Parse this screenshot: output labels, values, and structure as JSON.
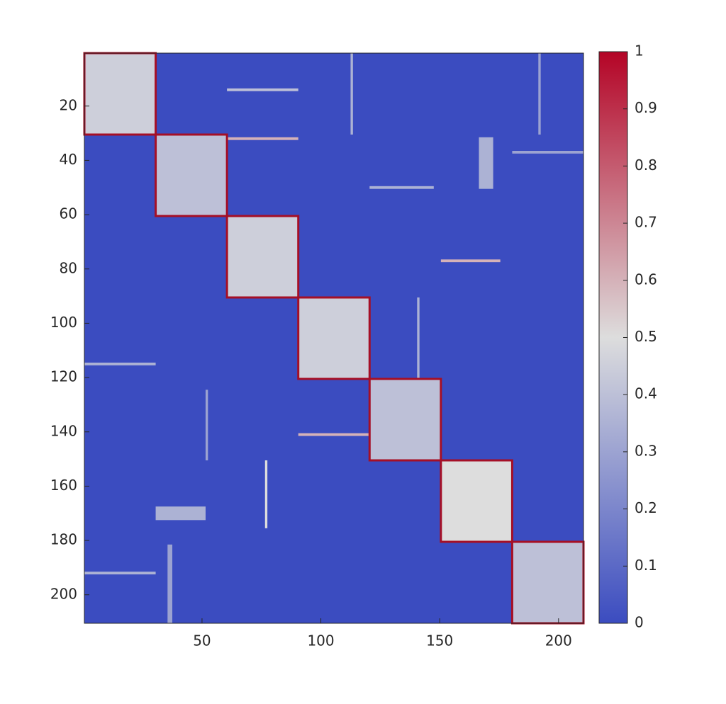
{
  "chart_data": {
    "type": "heatmap",
    "xlim": [
      0.5,
      210.5
    ],
    "ylim": [
      0.5,
      210.5
    ],
    "xticks": [
      50,
      100,
      150,
      200
    ],
    "yticks": [
      20,
      40,
      60,
      80,
      100,
      120,
      140,
      160,
      180,
      200
    ],
    "background": 0,
    "blocks": [
      {
        "rows": [
          1,
          30
        ],
        "value": 0.45
      },
      {
        "rows": [
          31,
          60
        ],
        "value": 0.4
      },
      {
        "rows": [
          61,
          90
        ],
        "value": 0.45
      },
      {
        "rows": [
          91,
          120
        ],
        "value": 0.45
      },
      {
        "rows": [
          121,
          150
        ],
        "value": 0.4
      },
      {
        "rows": [
          151,
          180
        ],
        "value": 0.5
      },
      {
        "rows": [
          181,
          210
        ],
        "value": 0.4
      }
    ],
    "block_outline": "#a50f26",
    "patches": [
      {
        "rows": [
          192,
          192
        ],
        "cols": [
          1,
          30
        ],
        "value": 0.35
      },
      {
        "rows": [
          1,
          30
        ],
        "cols": [
          192,
          192
        ],
        "value": 0.3
      },
      {
        "rows": [
          115,
          115
        ],
        "cols": [
          1,
          30
        ],
        "value": 0.35
      },
      {
        "rows": [
          77,
          77
        ],
        "cols": [
          151,
          175
        ],
        "value": 0.6
      },
      {
        "rows": [
          168,
          172
        ],
        "cols": [
          31,
          51
        ],
        "value": 0.35
      },
      {
        "rows": [
          151,
          175
        ],
        "cols": [
          77,
          77
        ],
        "value": 0.5
      },
      {
        "rows": [
          37,
          37
        ],
        "cols": [
          181,
          210
        ],
        "value": 0.3
      },
      {
        "rows": [
          32,
          32
        ],
        "cols": [
          61,
          90
        ],
        "value": 0.6
      },
      {
        "rows": [
          141,
          141
        ],
        "cols": [
          91,
          120
        ],
        "value": 0.6
      },
      {
        "rows": [
          125,
          150
        ],
        "cols": [
          52,
          52
        ],
        "value": 0.3
      },
      {
        "rows": [
          91,
          120
        ],
        "cols": [
          141,
          141
        ],
        "value": 0.35
      },
      {
        "rows": [
          1,
          30
        ],
        "cols": [
          113,
          113
        ],
        "value": 0.35
      },
      {
        "rows": [
          50,
          50
        ],
        "cols": [
          121,
          147
        ],
        "value": 0.35
      },
      {
        "rows": [
          32,
          50
        ],
        "cols": [
          167,
          172
        ],
        "value": 0.35
      },
      {
        "rows": [
          182,
          210
        ],
        "cols": [
          36,
          37
        ],
        "value": 0.3
      },
      {
        "rows": [
          14,
          14
        ],
        "cols": [
          61,
          90
        ],
        "value": 0.4
      }
    ],
    "colorbar": {
      "lim": [
        0,
        1
      ],
      "ticks": [
        0,
        0.1,
        0.2,
        0.3,
        0.4,
        0.5,
        0.6,
        0.7,
        0.8,
        0.9,
        1
      ],
      "colors": [
        "#3b4cc0",
        "#dddddd",
        "#b40426"
      ]
    }
  }
}
